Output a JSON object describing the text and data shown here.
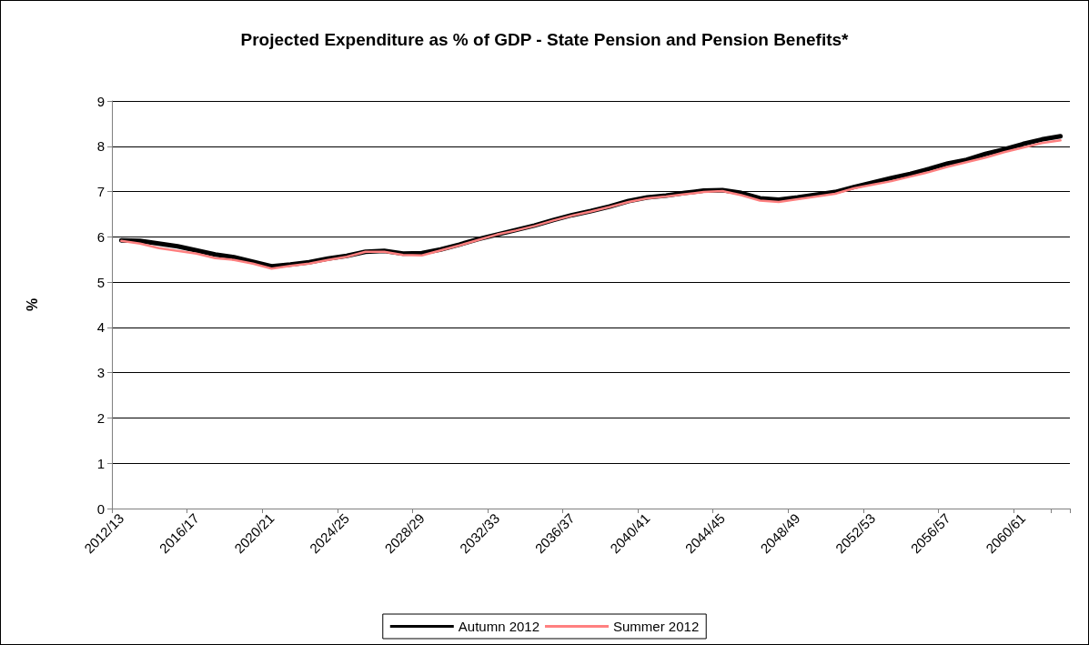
{
  "chart_data": {
    "type": "line",
    "title": "Projected Expenditure as % of GDP - State Pension and Pension Benefits*",
    "ylabel": "%",
    "categories": [
      "2012/13",
      null,
      null,
      null,
      "2016/17",
      null,
      null,
      null,
      "2020/21",
      null,
      null,
      null,
      "2024/25",
      null,
      null,
      null,
      "2028/29",
      null,
      null,
      null,
      "2032/33",
      null,
      null,
      null,
      "2036/37",
      null,
      null,
      null,
      "2040/41",
      null,
      null,
      null,
      "2044/45",
      null,
      null,
      null,
      "2048/49",
      null,
      null,
      null,
      "2052/53",
      null,
      null,
      null,
      "2056/57",
      null,
      null,
      null,
      "2060/61",
      null,
      null
    ],
    "series": [
      {
        "name": "Autumn 2012",
        "color": "#000000",
        "values": [
          5.92,
          5.91,
          5.85,
          5.79,
          5.7,
          5.61,
          5.55,
          5.45,
          5.35,
          5.39,
          5.44,
          5.52,
          5.58,
          5.67,
          5.69,
          5.63,
          5.64,
          5.72,
          5.83,
          5.95,
          6.05,
          6.15,
          6.25,
          6.37,
          6.48,
          6.57,
          6.67,
          6.79,
          6.87,
          6.91,
          6.97,
          7.02,
          7.03,
          6.97,
          6.85,
          6.82,
          6.87,
          6.93,
          6.99,
          7.1,
          7.2,
          7.3,
          7.39,
          7.5,
          7.62,
          7.7,
          7.83,
          7.93,
          8.05,
          8.15,
          8.22
        ]
      },
      {
        "name": "Summer 2012",
        "color": "#ff8080",
        "values": [
          5.91,
          5.85,
          5.75,
          5.69,
          5.63,
          5.53,
          5.49,
          5.41,
          5.3,
          5.36,
          5.41,
          5.49,
          5.56,
          5.67,
          5.67,
          5.6,
          5.59,
          5.7,
          5.81,
          5.93,
          6.05,
          6.14,
          6.24,
          6.36,
          6.47,
          6.56,
          6.66,
          6.77,
          6.85,
          6.89,
          6.94,
          6.99,
          7.01,
          6.92,
          6.8,
          6.77,
          6.83,
          6.89,
          6.95,
          7.07,
          7.15,
          7.23,
          7.33,
          7.43,
          7.55,
          7.65,
          7.75,
          7.87,
          7.97,
          8.07,
          8.13
        ]
      }
    ],
    "ylim": [
      0,
      9
    ],
    "yticks": [
      0,
      1,
      2,
      3,
      4,
      5,
      6,
      7,
      8,
      9
    ],
    "grid": "y",
    "legend": "bottom",
    "marker": "none",
    "line_style": "solid"
  }
}
